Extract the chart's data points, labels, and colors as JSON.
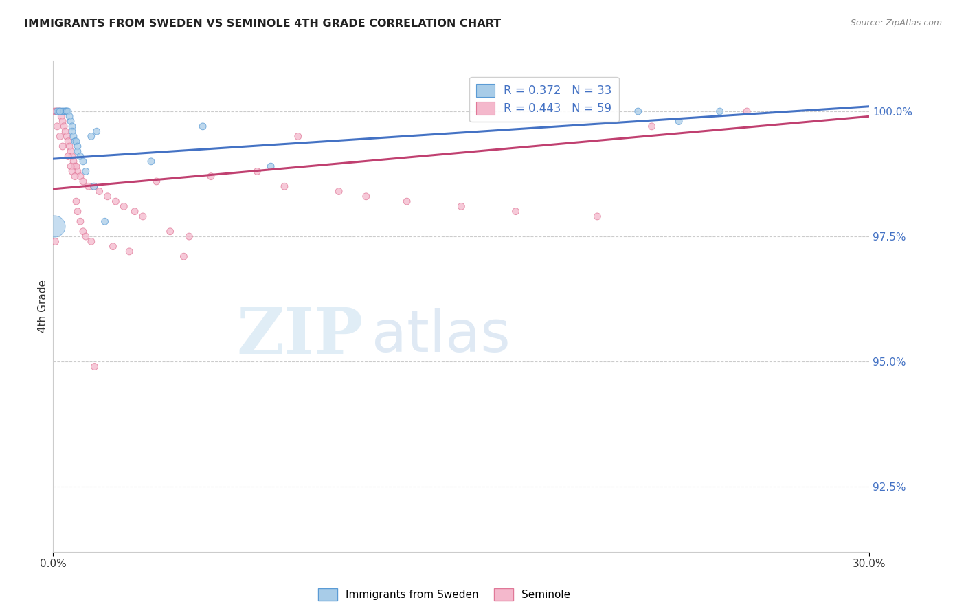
{
  "title": "IMMIGRANTS FROM SWEDEN VS SEMINOLE 4TH GRADE CORRELATION CHART",
  "source": "Source: ZipAtlas.com",
  "ylabel": "4th Grade",
  "yticks": [
    92.5,
    95.0,
    97.5,
    100.0
  ],
  "ytick_labels": [
    "92.5%",
    "95.0%",
    "97.5%",
    "100.0%"
  ],
  "xmin": 0.0,
  "xmax": 30.0,
  "ymin": 91.2,
  "ymax": 101.0,
  "blue_face_color": "#a8cce8",
  "blue_edge_color": "#5b9bd5",
  "pink_face_color": "#f4b8cc",
  "pink_edge_color": "#e07898",
  "blue_line_color": "#4472c4",
  "pink_line_color": "#c04070",
  "ytick_color": "#4472c4",
  "grid_color": "#cccccc",
  "title_color": "#222222",
  "source_color": "#888888",
  "legend_blue_label": "R = 0.372   N = 33",
  "legend_pink_label": "R = 0.443   N = 59",
  "bottom_legend_blue": "Immigrants from Sweden",
  "bottom_legend_pink": "Seminole",
  "blue_trend_x0": 0.0,
  "blue_trend_y0": 99.05,
  "blue_trend_x1": 30.0,
  "blue_trend_y1": 100.1,
  "pink_trend_x0": 0.0,
  "pink_trend_y0": 98.45,
  "pink_trend_x1": 30.0,
  "pink_trend_y1": 99.9,
  "blue_x": [
    0.2,
    0.3,
    0.35,
    0.4,
    0.45,
    0.45,
    0.5,
    0.5,
    0.55,
    0.6,
    0.65,
    0.7,
    0.7,
    0.75,
    0.8,
    0.85,
    0.9,
    0.9,
    1.0,
    1.1,
    1.2,
    1.4,
    1.5,
    1.6,
    1.9,
    3.6,
    5.5,
    8.0,
    21.5,
    23.0,
    24.5,
    0.15,
    0.25
  ],
  "blue_y": [
    100.0,
    100.0,
    100.0,
    100.0,
    100.0,
    100.0,
    100.0,
    100.0,
    100.0,
    99.9,
    99.8,
    99.7,
    99.6,
    99.5,
    99.4,
    99.4,
    99.3,
    99.2,
    99.1,
    99.0,
    98.8,
    99.5,
    98.5,
    99.6,
    97.8,
    99.0,
    99.7,
    98.9,
    100.0,
    99.8,
    100.0,
    100.0,
    100.0
  ],
  "blue_sizes": [
    50,
    50,
    50,
    50,
    50,
    50,
    50,
    50,
    50,
    50,
    50,
    50,
    50,
    50,
    50,
    50,
    50,
    50,
    50,
    50,
    50,
    50,
    50,
    50,
    50,
    50,
    50,
    50,
    50,
    50,
    50,
    50,
    50
  ],
  "blue_large_x": 0.05,
  "blue_large_y": 97.7,
  "blue_large_size": 500,
  "pink_x": [
    0.05,
    0.1,
    0.15,
    0.2,
    0.25,
    0.3,
    0.35,
    0.4,
    0.45,
    0.5,
    0.55,
    0.6,
    0.65,
    0.7,
    0.75,
    0.8,
    0.85,
    0.9,
    1.0,
    1.1,
    1.3,
    1.5,
    1.7,
    2.0,
    2.3,
    2.6,
    3.0,
    3.3,
    3.8,
    4.3,
    5.0,
    5.8,
    7.5,
    8.5,
    9.0,
    10.5,
    11.5,
    13.0,
    15.0,
    17.0,
    20.0,
    22.0,
    25.5,
    0.15,
    0.25,
    0.35,
    0.55,
    0.65,
    0.7,
    0.8,
    0.85,
    0.9,
    1.0,
    1.1,
    1.2,
    1.4,
    2.2,
    2.8,
    4.8
  ],
  "pink_y": [
    100.0,
    100.0,
    100.0,
    100.0,
    100.0,
    99.9,
    99.8,
    99.7,
    99.6,
    99.5,
    99.4,
    99.3,
    99.2,
    99.1,
    99.0,
    98.9,
    98.9,
    98.8,
    98.7,
    98.6,
    98.5,
    98.5,
    98.4,
    98.3,
    98.2,
    98.1,
    98.0,
    97.9,
    98.6,
    97.6,
    97.5,
    98.7,
    98.8,
    98.5,
    99.5,
    98.4,
    98.3,
    98.2,
    98.1,
    98.0,
    97.9,
    99.7,
    100.0,
    99.7,
    99.5,
    99.3,
    99.1,
    98.9,
    98.8,
    98.7,
    98.2,
    98.0,
    97.8,
    97.6,
    97.5,
    97.4,
    97.3,
    97.2,
    97.1
  ],
  "pink_sizes": [
    50,
    50,
    50,
    50,
    50,
    50,
    50,
    50,
    50,
    50,
    50,
    50,
    50,
    50,
    50,
    50,
    50,
    50,
    50,
    50,
    50,
    50,
    50,
    50,
    50,
    50,
    50,
    50,
    50,
    50,
    50,
    50,
    50,
    50,
    50,
    50,
    50,
    50,
    50,
    50,
    50,
    50,
    50,
    50,
    50,
    50,
    50,
    50,
    50,
    50,
    50,
    50,
    50,
    50,
    50,
    50,
    50,
    50,
    50
  ],
  "pink_low_x": 0.08,
  "pink_low_y": 97.4,
  "pink_low_size": 50,
  "pink_very_low_x": 1.5,
  "pink_very_low_y": 94.9,
  "pink_very_low_size": 50,
  "background_color": "#ffffff",
  "watermark_color": "#dceef8",
  "watermark_text": "ZIPatlas"
}
